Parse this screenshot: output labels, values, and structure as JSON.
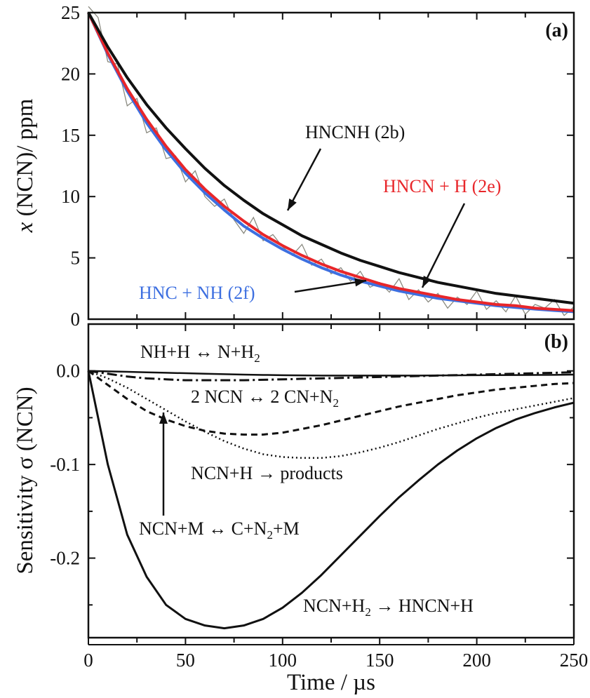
{
  "chart_data": [
    {
      "type": "line",
      "panel_label": "(a)",
      "xlabel": "Time / µs",
      "ylabel_italic": "x",
      "ylabel": " (NCN)/ ppm",
      "xlim": [
        0,
        250
      ],
      "ylim": [
        0,
        25
      ],
      "xticks": [
        0,
        50,
        100,
        150,
        200,
        250
      ],
      "yticks": [
        0,
        5,
        10,
        15,
        20,
        25
      ],
      "grid": false,
      "x": [
        0,
        10,
        20,
        30,
        40,
        50,
        60,
        70,
        80,
        90,
        100,
        110,
        120,
        130,
        140,
        150,
        160,
        170,
        180,
        190,
        200,
        210,
        220,
        230,
        240,
        250
      ],
      "series": [
        {
          "name": "HNCNH (2b)",
          "color": "#111111",
          "values": [
            25,
            22.2,
            19.7,
            17.5,
            15.6,
            13.9,
            12.3,
            10.9,
            9.7,
            8.6,
            7.7,
            6.8,
            6.1,
            5.4,
            4.8,
            4.3,
            3.8,
            3.4,
            3.0,
            2.7,
            2.4,
            2.1,
            1.9,
            1.7,
            1.5,
            1.3
          ]
        },
        {
          "name": "HNCN + H (2e)",
          "color": "#e8262a",
          "values": [
            25,
            21.7,
            18.8,
            16.3,
            14.1,
            12.2,
            10.6,
            9.2,
            8.0,
            6.9,
            6.0,
            5.2,
            4.5,
            3.9,
            3.4,
            2.9,
            2.5,
            2.2,
            1.9,
            1.6,
            1.4,
            1.2,
            1.1,
            0.9,
            0.8,
            0.7
          ]
        },
        {
          "name": "HNC + NH (2f)",
          "color": "#3d6fe0",
          "values": [
            25,
            21.6,
            18.6,
            16.0,
            13.8,
            11.9,
            10.3,
            8.9,
            7.6,
            6.6,
            5.7,
            4.9,
            4.2,
            3.6,
            3.1,
            2.7,
            2.3,
            2.0,
            1.7,
            1.5,
            1.3,
            1.1,
            0.96,
            0.82,
            0.71,
            0.61
          ]
        }
      ],
      "experiment": {
        "color": "#8a8a80",
        "x": [
          0,
          5,
          10,
          15,
          20,
          25,
          30,
          35,
          40,
          45,
          50,
          55,
          60,
          65,
          70,
          75,
          80,
          85,
          90,
          95,
          100,
          105,
          110,
          115,
          120,
          125,
          130,
          135,
          140,
          145,
          150,
          155,
          160,
          165,
          170,
          175,
          180,
          185,
          190,
          195,
          200,
          205,
          210,
          215,
          220,
          225,
          230,
          235,
          240,
          245,
          250
        ],
        "values": [
          25.5,
          24.6,
          21.0,
          20.8,
          17.4,
          18.0,
          15.2,
          15.6,
          13.1,
          13.3,
          11.2,
          12.1,
          10.0,
          9.2,
          9.8,
          8.1,
          7.0,
          8.3,
          6.4,
          6.9,
          5.9,
          5.2,
          6.1,
          4.4,
          4.9,
          3.7,
          4.2,
          3.1,
          3.9,
          2.6,
          3.0,
          2.2,
          3.3,
          1.6,
          2.4,
          1.4,
          2.1,
          0.9,
          1.8,
          1.2,
          2.3,
          0.8,
          1.5,
          0.6,
          1.9,
          0.4,
          1.2,
          0.9,
          1.6,
          0.3,
          1.0
        ]
      }
    },
    {
      "type": "line",
      "panel_label": "(b)",
      "xlabel": "Time / µs",
      "ylabel": "Sensitivity σ (NCN)",
      "xlim": [
        0,
        250
      ],
      "ylim": [
        -0.285,
        0.05
      ],
      "xticks": [
        0,
        50,
        100,
        150,
        200,
        250
      ],
      "xtick_labels": [
        "0",
        "50",
        "100",
        "150",
        "200",
        "250"
      ],
      "yticks": [
        -0.2,
        -0.1,
        0.0
      ],
      "ytick_labels": [
        "-0.2",
        "-0.1",
        "0.0"
      ],
      "grid": false,
      "x": [
        0,
        10,
        20,
        30,
        40,
        50,
        60,
        70,
        80,
        90,
        100,
        110,
        120,
        130,
        140,
        150,
        160,
        170,
        180,
        190,
        200,
        210,
        220,
        230,
        240,
        250
      ],
      "series": [
        {
          "name": "NH+H ↔ N+H2",
          "style": "solid-thin",
          "values": [
            0,
            -0.0005,
            -0.001,
            -0.0015,
            -0.002,
            -0.0025,
            -0.003,
            -0.0035,
            -0.004,
            -0.0043,
            -0.0046,
            -0.0048,
            -0.005,
            -0.005,
            -0.005,
            -0.005,
            -0.005,
            -0.005,
            -0.0048,
            -0.0047,
            -0.0046,
            -0.0045,
            -0.0044,
            -0.0043,
            -0.0042,
            -0.004
          ]
        },
        {
          "name": "2 NCN ↔ 2 CN+N2",
          "style": "dashdot",
          "values": [
            0,
            -0.003,
            -0.006,
            -0.008,
            -0.009,
            -0.01,
            -0.01,
            -0.01,
            -0.01,
            -0.0095,
            -0.009,
            -0.0085,
            -0.008,
            -0.0075,
            -0.007,
            -0.0065,
            -0.006,
            -0.0055,
            -0.005,
            -0.0045,
            -0.004,
            -0.0035,
            -0.003,
            -0.0025,
            -0.002,
            -0.0015
          ]
        },
        {
          "name": "NCN+H → products",
          "style": "dotted",
          "values": [
            0,
            -0.008,
            -0.018,
            -0.03,
            -0.042,
            -0.054,
            -0.065,
            -0.075,
            -0.083,
            -0.089,
            -0.092,
            -0.093,
            -0.093,
            -0.091,
            -0.087,
            -0.082,
            -0.076,
            -0.069,
            -0.062,
            -0.056,
            -0.05,
            -0.045,
            -0.041,
            -0.037,
            -0.033,
            -0.029
          ]
        },
        {
          "name": "NCN+M ↔ C+N2+M",
          "style": "dashed",
          "values": [
            0,
            -0.015,
            -0.03,
            -0.043,
            -0.052,
            -0.059,
            -0.064,
            -0.067,
            -0.068,
            -0.068,
            -0.066,
            -0.062,
            -0.058,
            -0.053,
            -0.048,
            -0.043,
            -0.038,
            -0.034,
            -0.03,
            -0.026,
            -0.023,
            -0.02,
            -0.018,
            -0.016,
            -0.014,
            -0.013
          ]
        },
        {
          "name": "NCN+H2 → HNCN+H",
          "style": "solid",
          "values": [
            0,
            -0.1,
            -0.175,
            -0.22,
            -0.25,
            -0.265,
            -0.272,
            -0.275,
            -0.272,
            -0.265,
            -0.253,
            -0.237,
            -0.218,
            -0.197,
            -0.176,
            -0.155,
            -0.135,
            -0.117,
            -0.1,
            -0.085,
            -0.072,
            -0.061,
            -0.052,
            -0.045,
            -0.039,
            -0.034
          ]
        }
      ]
    }
  ],
  "annotations": {
    "hncnh": "HNCNH (2b)",
    "hncn_h": "HNCN + H (2e)",
    "hnc_nh": "HNC + NH (2f)",
    "nh_h": {
      "a": "NH+H ↔ N+H",
      "sub": "2"
    },
    "ncn2": {
      "a": "2 NCN ↔ 2 CN+N",
      "sub": "2"
    },
    "ncn_h": "NCN+H → products",
    "ncn_m": {
      "a": "NCN+M ↔ C+N",
      "sub": "2",
      "b": "+M"
    },
    "ncn_h2": {
      "a": "NCN+H",
      "sub": "2",
      "b": " → HNCN+H"
    }
  }
}
